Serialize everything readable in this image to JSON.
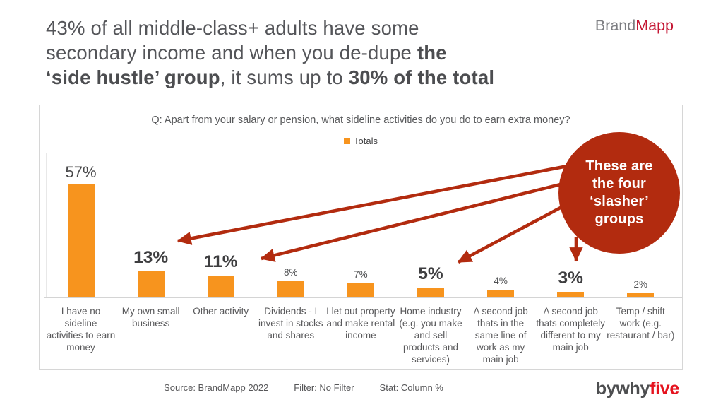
{
  "title": {
    "line1": "43% of all middle-class+ adults have some",
    "line2a": "secondary income and when you de-dupe ",
    "line2b": "the",
    "line3a": "‘side hustle’ group",
    "line3b": ", it sums up to ",
    "line3c": "30% of the total"
  },
  "brand_logo": {
    "gray": "Brand",
    "red": "Mapp"
  },
  "chart_data": {
    "type": "bar",
    "title": "Q: Apart from your salary or pension, what sideline activities do you do to earn extra money?",
    "legend": {
      "label": "Totals",
      "position": "top-center"
    },
    "categories": [
      "I have no sideline activities to earn money",
      "My own small business",
      "Other activity",
      "Dividends - I invest in stocks and shares",
      "I let out property and make rental income",
      "Home industry (e.g. you make and sell products and services)",
      "A second job thats in the same line of work as my main job",
      "A second job thats completely different to my main job",
      "Temp / shift work (e.g. restaurant / bar)"
    ],
    "values": [
      57,
      13,
      11,
      8,
      7,
      5,
      4,
      3,
      2
    ],
    "value_labels": [
      "57%",
      "13%",
      "11%",
      "8%",
      "7%",
      "5%",
      "4%",
      "3%",
      "2%"
    ],
    "emphasized_indices": [
      1,
      2,
      5,
      7
    ],
    "ylim": [
      0,
      60
    ],
    "grid": false,
    "colors": {
      "bar": "#F7941E",
      "annotation": "#B22B0F",
      "axis": "#D4D4D4"
    },
    "annotation": {
      "lines": [
        "These are",
        "the four",
        "‘slasher’",
        "groups"
      ],
      "arrow_targets": [
        "13%",
        "11%",
        "5%",
        "3%"
      ]
    }
  },
  "footer": {
    "source": "Source: BrandMapp 2022",
    "filter": "Filter: No Filter",
    "stat": "Stat: Column %",
    "logo_gray": "bywhy",
    "logo_red": "five"
  }
}
